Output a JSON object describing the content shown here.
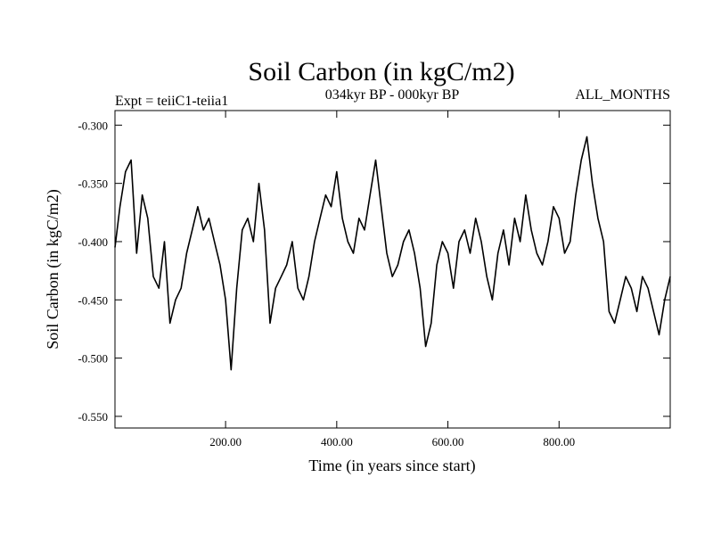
{
  "chart_data": {
    "type": "line",
    "title": "Soil Carbon (in kgC/m2)",
    "subtitle_left": "Expt = teiiC1-teiia1",
    "subtitle_center": "034kyr BP - 000kyr BP",
    "subtitle_right": "ALL_MONTHS",
    "xlabel": "Time (in years since start)",
    "ylabel": "Soil Carbon (in kgC/m2)",
    "xlim": [
      1,
      1000
    ],
    "ylim": [
      -0.56,
      -0.2875
    ],
    "x_ticks": [
      200,
      400,
      600,
      800
    ],
    "x_tick_labels": [
      "200.00",
      "400.00",
      "600.00",
      "800.00"
    ],
    "y_ticks": [
      -0.3,
      -0.35,
      -0.4,
      -0.45,
      -0.5,
      -0.55
    ],
    "y_tick_labels": [
      "-0.300",
      "-0.350",
      "-0.400",
      "-0.450",
      "-0.500",
      "-0.550"
    ],
    "grid": false,
    "series": [
      {
        "color": "#000000",
        "x": [
          1,
          10,
          20,
          30,
          40,
          50,
          60,
          70,
          80,
          90,
          100,
          110,
          120,
          130,
          140,
          150,
          160,
          170,
          180,
          190,
          200,
          210,
          220,
          230,
          240,
          250,
          260,
          270,
          280,
          290,
          300,
          310,
          320,
          330,
          340,
          350,
          360,
          370,
          380,
          390,
          400,
          410,
          420,
          430,
          440,
          450,
          460,
          470,
          480,
          490,
          500,
          510,
          520,
          530,
          540,
          550,
          560,
          570,
          580,
          590,
          600,
          610,
          620,
          630,
          640,
          650,
          660,
          670,
          680,
          690,
          700,
          710,
          720,
          730,
          740,
          750,
          760,
          770,
          780,
          790,
          800,
          810,
          820,
          830,
          840,
          850,
          860,
          870,
          880,
          890,
          900,
          910,
          920,
          930,
          940,
          950,
          960,
          970,
          980,
          990,
          1000
        ],
        "y": [
          -0.405,
          -0.37,
          -0.34,
          -0.33,
          -0.41,
          -0.36,
          -0.38,
          -0.43,
          -0.44,
          -0.4,
          -0.47,
          -0.45,
          -0.44,
          -0.41,
          -0.39,
          -0.37,
          -0.39,
          -0.38,
          -0.4,
          -0.42,
          -0.45,
          -0.51,
          -0.44,
          -0.39,
          -0.38,
          -0.4,
          -0.35,
          -0.39,
          -0.47,
          -0.44,
          -0.43,
          -0.42,
          -0.4,
          -0.44,
          -0.45,
          -0.43,
          -0.4,
          -0.38,
          -0.36,
          -0.37,
          -0.34,
          -0.38,
          -0.4,
          -0.41,
          -0.38,
          -0.39,
          -0.36,
          -0.33,
          -0.37,
          -0.41,
          -0.43,
          -0.42,
          -0.4,
          -0.39,
          -0.41,
          -0.44,
          -0.49,
          -0.47,
          -0.42,
          -0.4,
          -0.41,
          -0.44,
          -0.4,
          -0.39,
          -0.41,
          -0.38,
          -0.4,
          -0.43,
          -0.45,
          -0.41,
          -0.39,
          -0.42,
          -0.38,
          -0.4,
          -0.36,
          -0.39,
          -0.41,
          -0.42,
          -0.4,
          -0.37,
          -0.38,
          -0.41,
          -0.4,
          -0.36,
          -0.33,
          -0.31,
          -0.35,
          -0.38,
          -0.4,
          -0.46,
          -0.47,
          -0.45,
          -0.43,
          -0.44,
          -0.46,
          -0.43,
          -0.44,
          -0.46,
          -0.48,
          -0.45,
          -0.43
        ]
      }
    ]
  }
}
